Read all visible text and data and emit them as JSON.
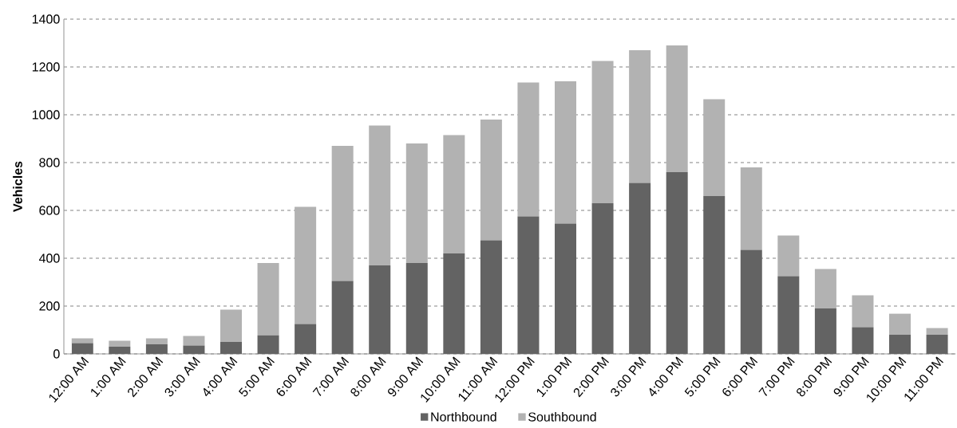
{
  "chart_data": {
    "type": "bar",
    "stacked": true,
    "ylabel": "Vehicles",
    "categories": [
      "12:00 AM",
      "1:00 AM",
      "2:00 AM",
      "3:00 AM",
      "4:00 AM",
      "5:00 AM",
      "6:00 AM",
      "7:00 AM",
      "8:00 AM",
      "9:00 AM",
      "10:00 AM",
      "11:00 AM",
      "12:00 PM",
      "1:00 PM",
      "2:00 PM",
      "3:00 PM",
      "4:00 PM",
      "5:00 PM",
      "6:00 PM",
      "7:00 PM",
      "8:00 PM",
      "9:00 PM",
      "10:00 PM",
      "11:00 PM"
    ],
    "series": [
      {
        "name": "Northbound",
        "color": "#636363",
        "values": [
          45,
          30,
          40,
          35,
          50,
          78,
          125,
          305,
          370,
          380,
          420,
          475,
          575,
          545,
          630,
          715,
          760,
          660,
          435,
          325,
          190,
          112,
          80,
          80
        ]
      },
      {
        "name": "Southbound",
        "color": "#b2b2b2",
        "values": [
          20,
          25,
          25,
          40,
          135,
          302,
          490,
          565,
          585,
          500,
          495,
          505,
          560,
          595,
          595,
          555,
          530,
          405,
          345,
          170,
          165,
          133,
          88,
          28
        ]
      }
    ],
    "ylim": [
      0,
      1400
    ],
    "yticks": [
      0,
      200,
      400,
      600,
      800,
      1000,
      1200,
      1400
    ],
    "grid": "y",
    "legend": "bottom"
  }
}
